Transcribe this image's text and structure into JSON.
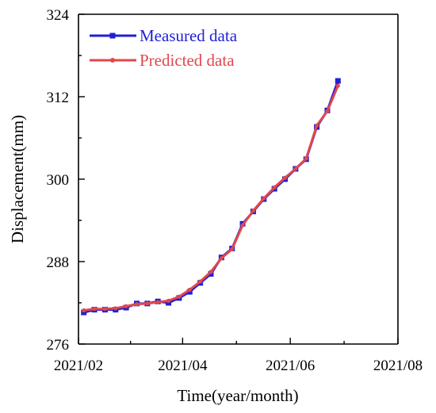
{
  "chart_data": {
    "type": "line",
    "title": "",
    "xlabel": "Time(year/month)",
    "ylabel": "Displacement(mm)",
    "xlim": [
      "2021-02-01",
      "2021-08-01"
    ],
    "ylim": [
      276,
      324
    ],
    "xticks": [
      "2021-02-01",
      "2021-04-01",
      "2021-06-01",
      "2021-08-01"
    ],
    "xtick_labels": [
      "2021/02",
      "2021/04",
      "2021/06",
      "2021/08"
    ],
    "yticks": [
      276,
      288,
      300,
      312,
      324
    ],
    "grid": false,
    "legend": {
      "position": "top-left"
    },
    "series": [
      {
        "name": "Measured data",
        "color": "#1f1fd6",
        "marker": "square",
        "points": [
          [
            "2021-02-04",
            280.6
          ],
          [
            "2021-02-10",
            281.0
          ],
          [
            "2021-02-16",
            281.0
          ],
          [
            "2021-02-22",
            281.0
          ],
          [
            "2021-02-28",
            281.3
          ],
          [
            "2021-03-06",
            281.9
          ],
          [
            "2021-03-12",
            281.9
          ],
          [
            "2021-03-18",
            282.2
          ],
          [
            "2021-03-24",
            282.0
          ],
          [
            "2021-03-30",
            282.7
          ],
          [
            "2021-04-05",
            283.6
          ],
          [
            "2021-04-11",
            284.9
          ],
          [
            "2021-04-17",
            286.2
          ],
          [
            "2021-04-23",
            288.6
          ],
          [
            "2021-04-29",
            289.9
          ],
          [
            "2021-05-05",
            293.5
          ],
          [
            "2021-05-11",
            295.3
          ],
          [
            "2021-05-17",
            297.1
          ],
          [
            "2021-05-23",
            298.6
          ],
          [
            "2021-05-29",
            300.0
          ],
          [
            "2021-06-04",
            301.5
          ],
          [
            "2021-06-10",
            302.9
          ],
          [
            "2021-06-16",
            307.6
          ],
          [
            "2021-06-22",
            310.0
          ],
          [
            "2021-06-28",
            314.3
          ]
        ]
      },
      {
        "name": "Predicted data",
        "color": "#e0474c",
        "marker": "circle",
        "points": [
          [
            "2021-02-04",
            280.9
          ],
          [
            "2021-02-10",
            281.1
          ],
          [
            "2021-02-16",
            281.1
          ],
          [
            "2021-02-22",
            281.2
          ],
          [
            "2021-02-28",
            281.5
          ],
          [
            "2021-03-06",
            281.8
          ],
          [
            "2021-03-12",
            281.9
          ],
          [
            "2021-03-18",
            282.1
          ],
          [
            "2021-03-24",
            282.3
          ],
          [
            "2021-03-30",
            282.9
          ],
          [
            "2021-04-05",
            283.9
          ],
          [
            "2021-04-11",
            285.1
          ],
          [
            "2021-04-17",
            286.5
          ],
          [
            "2021-04-23",
            288.5
          ],
          [
            "2021-04-29",
            289.8
          ],
          [
            "2021-05-05",
            293.3
          ],
          [
            "2021-05-11",
            295.4
          ],
          [
            "2021-05-17",
            297.2
          ],
          [
            "2021-05-23",
            298.8
          ],
          [
            "2021-05-29",
            300.2
          ],
          [
            "2021-06-04",
            301.5
          ],
          [
            "2021-06-10",
            303.0
          ],
          [
            "2021-06-16",
            307.8
          ],
          [
            "2021-06-22",
            309.9
          ],
          [
            "2021-06-28",
            313.6
          ]
        ]
      }
    ]
  }
}
